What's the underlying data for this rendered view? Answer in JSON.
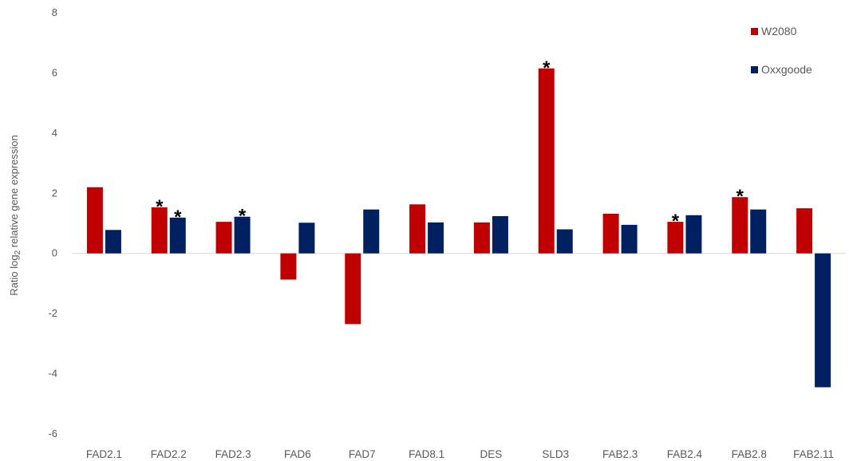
{
  "chart_data": {
    "type": "bar",
    "title": "",
    "xlabel": "",
    "ylabel": "Ratio log",
    "ylabel_subscript": "2",
    "ylabel_suffix": " relative gene expression",
    "ylim": [
      -6,
      8
    ],
    "yticks": [
      -6,
      -4,
      -2,
      0,
      2,
      4,
      6,
      8
    ],
    "grid": false,
    "legend_position": "top-right",
    "categories": [
      "FAD2.1",
      "FAD2.2",
      "FAD2.3",
      "FAD6",
      "FAD7",
      "FAD8.1",
      "DES",
      "SLD3",
      "FAB2.3",
      "FAB2.4",
      "FAB2.8",
      "FAB2.11"
    ],
    "series": [
      {
        "name": "W2080",
        "color": "#c00000",
        "values": [
          2.2,
          1.53,
          1.05,
          -0.87,
          -2.35,
          1.63,
          1.03,
          6.15,
          1.32,
          1.05,
          1.87,
          1.5
        ],
        "significant": [
          false,
          true,
          false,
          false,
          false,
          false,
          false,
          true,
          false,
          true,
          true,
          false
        ]
      },
      {
        "name": "Oxxgoode",
        "color": "#002060",
        "values": [
          0.78,
          1.19,
          1.22,
          1.02,
          1.46,
          1.03,
          1.24,
          0.8,
          0.95,
          1.27,
          1.46,
          -4.45
        ],
        "significant": [
          false,
          true,
          true,
          false,
          false,
          false,
          false,
          false,
          false,
          false,
          false,
          false
        ]
      }
    ],
    "significance_marker": "*"
  }
}
